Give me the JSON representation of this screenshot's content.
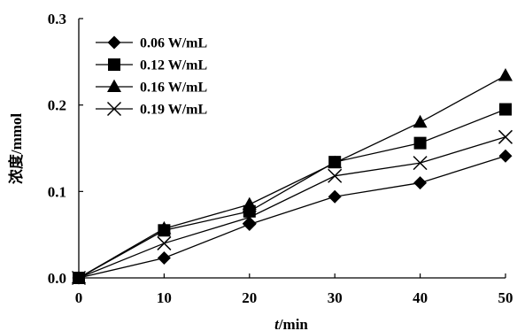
{
  "chart_data": {
    "type": "line",
    "title": "",
    "xlabel_italic": "t",
    "xlabel_rest": "/min",
    "ylabel": "浓度/mmol",
    "x": [
      0,
      10,
      20,
      30,
      40,
      50
    ],
    "xlim": [
      0,
      50
    ],
    "ylim": [
      0,
      0.3
    ],
    "x_ticks": [
      "0",
      "10",
      "20",
      "30",
      "40",
      "50"
    ],
    "y_ticks": [
      "0.0",
      "0.1",
      "0.2",
      "0.3"
    ],
    "grid": false,
    "legend_position": "top-left",
    "series": [
      {
        "name": "0.06 W/mL",
        "marker": "diamond",
        "values": [
          0.0,
          0.023,
          0.062,
          0.094,
          0.11,
          0.141
        ]
      },
      {
        "name": "0.12 W/mL",
        "marker": "square",
        "values": [
          0.0,
          0.055,
          0.077,
          0.134,
          0.156,
          0.195
        ]
      },
      {
        "name": "0.16 W/mL",
        "marker": "triangle",
        "values": [
          0.0,
          0.057,
          0.085,
          0.133,
          0.18,
          0.234
        ]
      },
      {
        "name": "0.19 W/mL",
        "marker": "x",
        "values": [
          0.0,
          0.04,
          0.07,
          0.118,
          0.133,
          0.163
        ]
      }
    ],
    "colors": {
      "line": "#000000",
      "marker": "#000000"
    }
  }
}
